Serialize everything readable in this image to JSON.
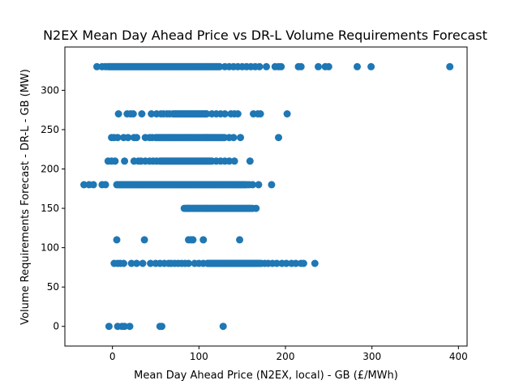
{
  "chart_data": {
    "type": "scatter",
    "title": "N2EX Mean Day Ahead Price vs DR-L Volume Requirements Forecast",
    "xlabel": "Mean Day Ahead Price (N2EX, local) - GB (£/MWh)",
    "ylabel": "Volume Requirements Forecast - DR-L - GB (MW)",
    "xlim": [
      -55,
      410
    ],
    "ylim": [
      -25,
      355
    ],
    "xticks": [
      0,
      100,
      200,
      300,
      400
    ],
    "yticks": [
      0,
      50,
      100,
      150,
      200,
      250,
      300
    ],
    "grid": false,
    "legend": "none",
    "color": "#1f77b4",
    "levels": [
      {
        "y": 330,
        "x_dense": [
          -5,
          125
        ],
        "x_sparse": [
          -18,
          -12,
          -8,
          130,
          135,
          140,
          145,
          150,
          155,
          160,
          165,
          170,
          178,
          188,
          192,
          195,
          215,
          218,
          238,
          246,
          250,
          283,
          299,
          390
        ]
      },
      {
        "y": 270,
        "x_dense": [
          70,
          110
        ],
        "x_sparse": [
          7,
          17,
          21,
          24,
          34,
          45,
          51,
          56,
          59,
          63,
          66,
          115,
          120,
          125,
          130,
          137,
          141,
          145,
          163,
          168,
          171,
          202
        ]
      },
      {
        "y": 240,
        "x_dense": [
          50,
          130
        ],
        "x_sparse": [
          -1,
          2,
          6,
          13,
          18,
          25,
          28,
          38,
          43,
          46,
          135,
          140,
          148,
          192
        ]
      },
      {
        "y": 210,
        "x_dense": [
          55,
          115
        ],
        "x_sparse": [
          -5,
          -1,
          3,
          14,
          25,
          30,
          33,
          38,
          43,
          47,
          51,
          120,
          125,
          130,
          135,
          141,
          159
        ]
      },
      {
        "y": 180,
        "x_dense": [
          5,
          155
        ],
        "x_sparse": [
          -33,
          -27,
          -22,
          -12,
          -8,
          158,
          162,
          169,
          184
        ]
      },
      {
        "y": 150,
        "x_dense": [
          85,
          160
        ],
        "x_sparse": [
          83,
          88,
          162,
          166
        ]
      },
      {
        "y": 110,
        "x_dense": null,
        "x_sparse": [
          5,
          37,
          88,
          91,
          93,
          105,
          147
        ]
      },
      {
        "y": 80,
        "x_dense": [
          110,
          170
        ],
        "x_sparse": [
          2,
          6,
          9,
          13,
          22,
          28,
          35,
          44,
          50,
          55,
          60,
          65,
          68,
          72,
          76,
          80,
          84,
          88,
          95,
          100,
          105,
          172,
          176,
          180,
          185,
          190,
          196,
          201,
          207,
          212,
          218,
          221,
          234
        ]
      },
      {
        "y": 0,
        "x_dense": null,
        "x_sparse": [
          -4,
          6,
          11,
          14,
          20,
          55,
          57,
          128
        ]
      }
    ]
  }
}
